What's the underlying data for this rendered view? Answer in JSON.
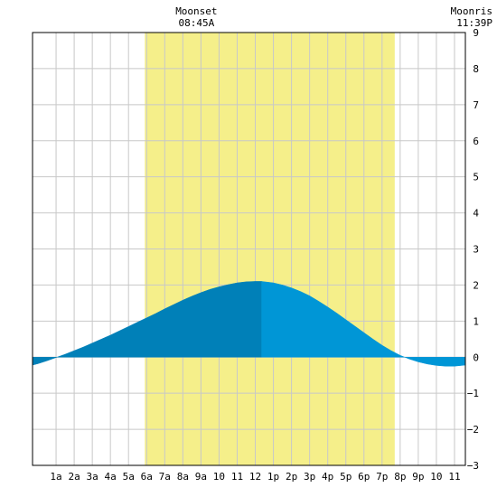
{
  "chart_data": {
    "type": "area",
    "title": "",
    "xlabel": "",
    "ylabel": "",
    "xlim": [
      -0.3,
      23.6
    ],
    "ylim": [
      -3,
      9
    ],
    "y_ticks": [
      "9",
      "8",
      "7",
      "6",
      "5",
      "4",
      "3",
      "2",
      "1",
      "0",
      "−1",
      "−2",
      "−3"
    ],
    "x_ticks": [
      {
        "x": 1,
        "label": "1a"
      },
      {
        "x": 2,
        "label": "2a"
      },
      {
        "x": 3,
        "label": "3a"
      },
      {
        "x": 4,
        "label": "4a"
      },
      {
        "x": 5,
        "label": "5a"
      },
      {
        "x": 6,
        "label": "6a"
      },
      {
        "x": 7,
        "label": "7a"
      },
      {
        "x": 8,
        "label": "8a"
      },
      {
        "x": 9,
        "label": "9a"
      },
      {
        "x": 10,
        "label": "10"
      },
      {
        "x": 11,
        "label": "11"
      },
      {
        "x": 12,
        "label": "12"
      },
      {
        "x": 13,
        "label": "1p"
      },
      {
        "x": 14,
        "label": "2p"
      },
      {
        "x": 15,
        "label": "3p"
      },
      {
        "x": 16,
        "label": "4p"
      },
      {
        "x": 17,
        "label": "5p"
      },
      {
        "x": 18,
        "label": "6p"
      },
      {
        "x": 19,
        "label": "7p"
      },
      {
        "x": 20,
        "label": "8p"
      },
      {
        "x": 21,
        "label": "9p"
      },
      {
        "x": 22,
        "label": "10"
      },
      {
        "x": 23,
        "label": "11"
      }
    ],
    "daylight": {
      "start": 5.9,
      "end": 19.7,
      "color": "#f5ef8a"
    },
    "annotations": [
      {
        "x": 8.75,
        "title": "Moonset",
        "time": "08:45A",
        "anchor": "middle"
      },
      {
        "x": 23.6,
        "title": "Moonris",
        "time": "11:39P",
        "anchor": "end"
      }
    ],
    "series": [
      {
        "color_before_peak": "#0080b8",
        "color_after_peak": "#0096d6",
        "peak_x": 12.35,
        "x": [
          -0.3,
          0,
          0.5,
          1,
          1.5,
          2,
          2.5,
          3,
          3.5,
          4,
          4.5,
          5,
          5.5,
          6,
          6.5,
          7,
          7.5,
          8,
          8.5,
          9,
          9.5,
          10,
          10.5,
          11,
          11.5,
          12,
          12.35,
          12.5,
          13,
          13.5,
          14,
          14.5,
          15,
          15.5,
          16,
          16.5,
          17,
          17.5,
          18,
          18.5,
          19,
          19.5,
          20,
          20.5,
          21,
          21.5,
          22,
          22.5,
          23,
          23.6
        ],
        "y": [
          -0.22,
          -0.18,
          -0.1,
          -0.01,
          0.08,
          0.18,
          0.28,
          0.39,
          0.5,
          0.61,
          0.73,
          0.85,
          0.97,
          1.09,
          1.21,
          1.34,
          1.46,
          1.58,
          1.69,
          1.79,
          1.88,
          1.95,
          2.01,
          2.06,
          2.09,
          2.1,
          2.1,
          2.09,
          2.06,
          2.0,
          1.92,
          1.82,
          1.7,
          1.55,
          1.39,
          1.22,
          1.04,
          0.86,
          0.68,
          0.5,
          0.33,
          0.18,
          0.05,
          -0.05,
          -0.13,
          -0.19,
          -0.23,
          -0.25,
          -0.25,
          -0.22
        ]
      }
    ]
  }
}
